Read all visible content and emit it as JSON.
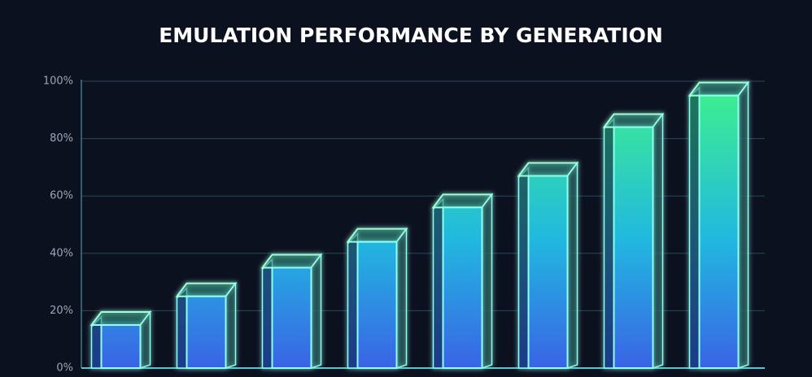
{
  "chart_data": {
    "type": "bar3d",
    "title": "EMULATION PERFORMANCE BY GENERATION",
    "categories": [
      null,
      null,
      null,
      null,
      null,
      null,
      null,
      null
    ],
    "values": [
      15,
      25,
      35,
      44,
      56,
      67,
      84,
      95
    ],
    "ylim": [
      0,
      100
    ],
    "yticks": [
      {
        "value": 0,
        "label": "0%"
      },
      {
        "value": 20,
        "label": "20%"
      },
      {
        "value": 40,
        "label": "40%"
      },
      {
        "value": 60,
        "label": "60%"
      },
      {
        "value": 80,
        "label": "80%"
      },
      {
        "value": 100,
        "label": "100%"
      }
    ],
    "grid": true
  }
}
